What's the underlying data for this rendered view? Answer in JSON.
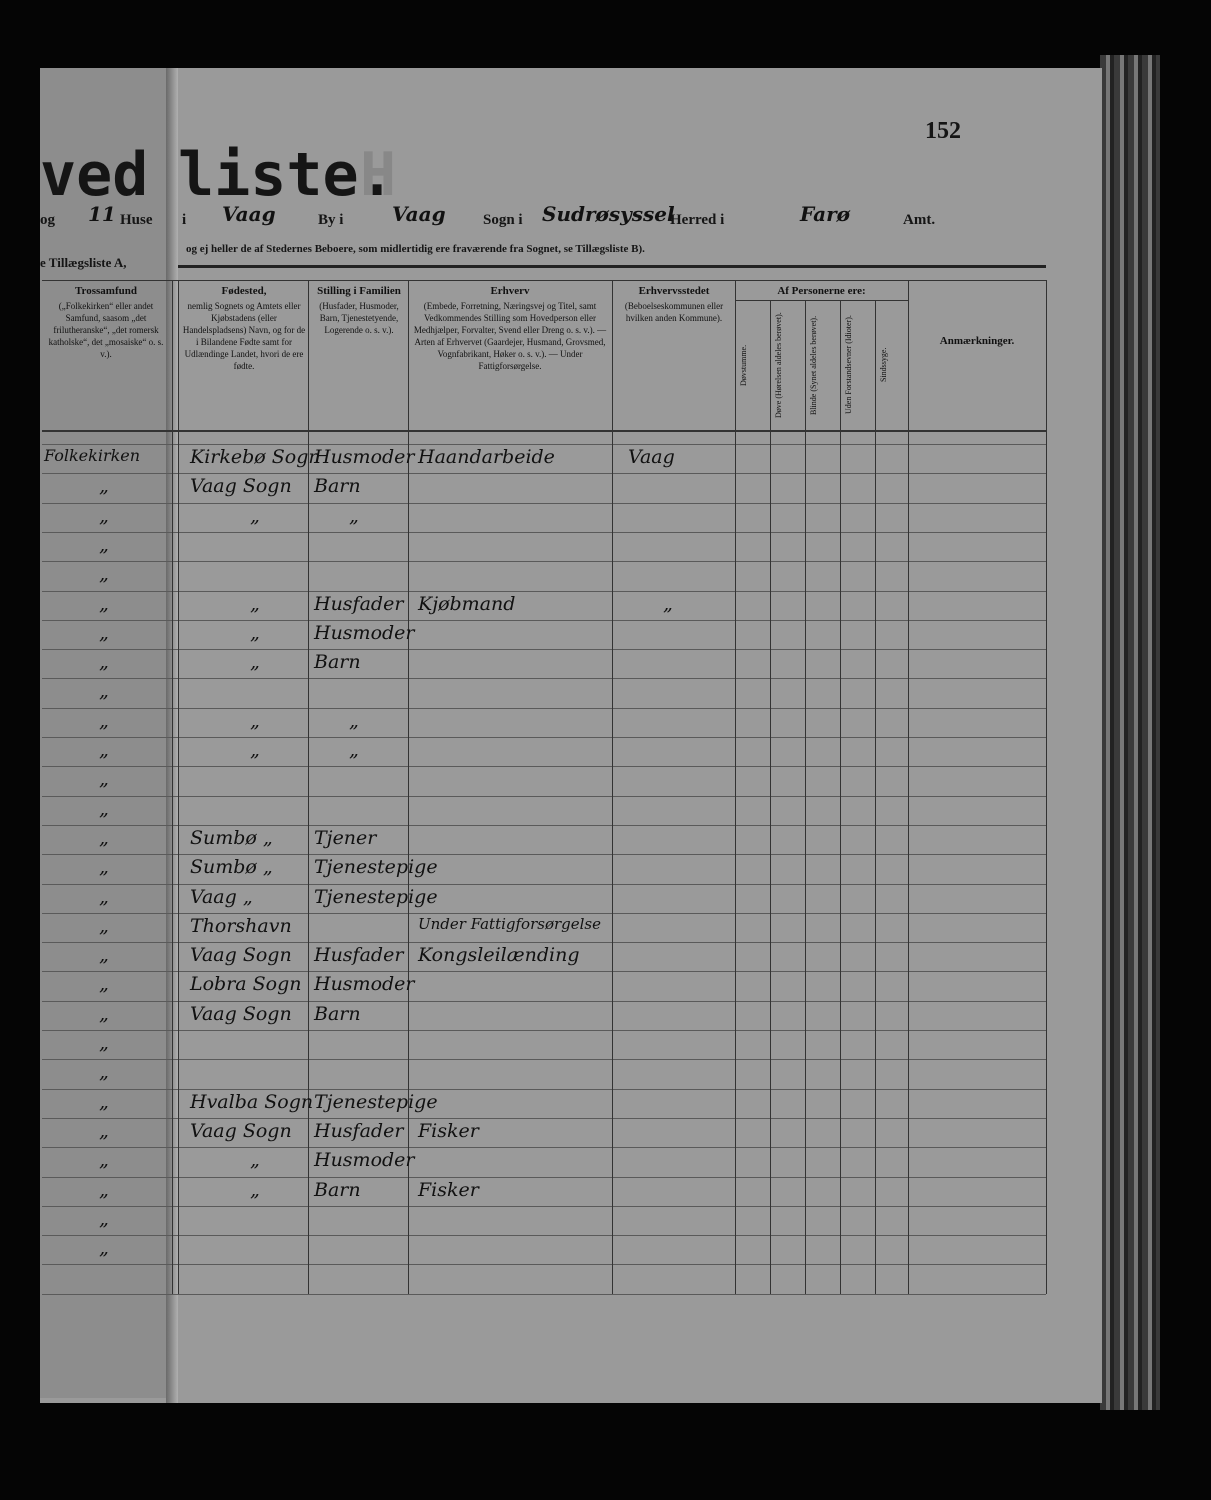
{
  "header": {
    "title_left": "ved",
    "title_right": "liste.",
    "faint_letter": "H",
    "page_number": "152",
    "line1": [
      "og",
      "11",
      "Huse",
      "i",
      "Vaag",
      "By i",
      "Vaag",
      "Sogn i",
      "Sudrøsyssel",
      "Herred i",
      "Farø",
      "Amt."
    ],
    "line2_left": "e Tillægsliste A,",
    "line2_right": "og ej heller de af Stedernes Beboere, som midlertidig ere fraværende fra Sognet, se Tillægsliste B)."
  },
  "table": {
    "columns": {
      "trossamfund": {
        "title": "Trossamfund",
        "body": "(„Folkekirken“ eller andet Samfund, saasom „det frilutheranske“, „det romersk katholske“, det „mosaiske“ o. s. v.)."
      },
      "fodested": {
        "title": "Fødested,",
        "body": "nemlig Sognets og Amtets eller Kjøbstadens (eller Handelspladsens) Navn, og for de i Bilandene Fødte samt for Udlændinge Landet, hvori de ere fødte."
      },
      "stilling": {
        "title": "Stilling i Familien",
        "body": "(Husfader, Husmoder, Barn, Tjenestetyende, Logerende o. s. v.)."
      },
      "erhverv": {
        "title": "Erhverv",
        "body": "(Embede, Forretning, Næringsvej og Titel, samt Vedkommendes Stilling som Hovedperson eller Medhjælper, Forvalter, Svend eller Dreng o. s. v.). — Arten af Erhvervet (Gaardejer, Husmand, Grovsmed, Vognfabrikant, Høker o. s. v.). — Under Fattigforsørgelse."
      },
      "erhvervssted": {
        "title": "Erhvervsstedet",
        "body": "(Beboelseskommunen eller hvilken anden Kommune)."
      },
      "personerne": {
        "title": "Af Personerne ere:",
        "sub": [
          "Døvstumme.",
          "Døve (Hørelsen aldeles berøvet).",
          "Blinde (Synet aldeles berøvet).",
          "Uden Forstandsevner (Idioter).",
          "Sindssyge."
        ]
      },
      "anmaerkninger": {
        "title": "Anmærkninger."
      }
    },
    "rows": [
      {
        "trossamfund": "Folkekirken",
        "fodested": "Kirkebø Sogn",
        "stilling": "Husmoder",
        "erhverv": "Haandarbeide",
        "erhvervssted": "Vaag"
      },
      {
        "trossamfund": "„",
        "fodested": "Vaag Sogn",
        "stilling": "Barn"
      },
      {
        "trossamfund": "„",
        "fodested": "„",
        "stilling": "„"
      },
      {
        "trossamfund": "„"
      },
      {
        "trossamfund": "„"
      },
      {
        "trossamfund": "„",
        "fodested": "„",
        "stilling": "Husfader",
        "erhverv": "Kjøbmand",
        "erhvervssted": "„"
      },
      {
        "trossamfund": "„",
        "fodested": "„",
        "stilling": "Husmoder"
      },
      {
        "trossamfund": "„",
        "fodested": "„",
        "stilling": "Barn"
      },
      {
        "trossamfund": "„"
      },
      {
        "trossamfund": "„",
        "fodested": "„",
        "stilling": "„"
      },
      {
        "trossamfund": "„",
        "fodested": "„",
        "stilling": "„"
      },
      {
        "trossamfund": "„"
      },
      {
        "trossamfund": "„"
      },
      {
        "trossamfund": "„",
        "fodested": "Sumbø „",
        "stilling": "Tjener"
      },
      {
        "trossamfund": "„",
        "fodested": "Sumbø „",
        "stilling": "Tjenestepige"
      },
      {
        "trossamfund": "„",
        "fodested": "Vaag „",
        "stilling": "Tjenestepige"
      },
      {
        "trossamfund": "„",
        "fodested": "Thorshavn",
        "erhverv": "Under Fattigforsørgelse"
      },
      {
        "trossamfund": "„",
        "fodested": "Vaag Sogn",
        "stilling": "Husfader",
        "erhverv": "Kongsleilænding"
      },
      {
        "trossamfund": "„",
        "fodested": "Lobra Sogn",
        "stilling": "Husmoder"
      },
      {
        "trossamfund": "„",
        "fodested": "Vaag Sogn",
        "stilling": "Barn"
      },
      {
        "trossamfund": "„"
      },
      {
        "trossamfund": "„"
      },
      {
        "trossamfund": "„",
        "fodested": "Hvalba Sogn",
        "stilling": "Tjenestepige"
      },
      {
        "trossamfund": "„",
        "fodested": "Vaag Sogn",
        "stilling": "Husfader",
        "erhverv": "Fisker"
      },
      {
        "trossamfund": "„",
        "fodested": "„",
        "stilling": "Husmoder"
      },
      {
        "trossamfund": "„",
        "fodested": "„",
        "stilling": "Barn",
        "erhverv": "Fisker"
      },
      {
        "trossamfund": "„"
      },
      {
        "trossamfund": "„"
      }
    ]
  }
}
